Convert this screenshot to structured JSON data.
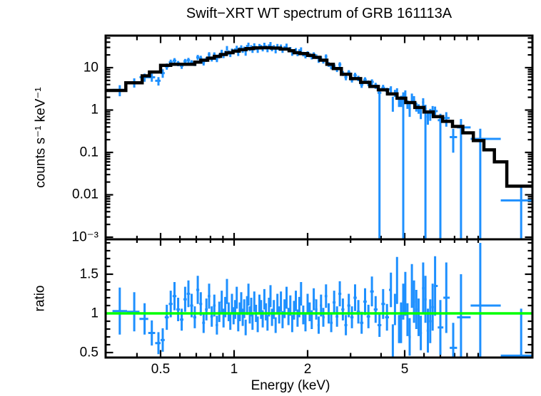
{
  "colors": {
    "background": "#FFFFFF",
    "frame": "#000000",
    "data": "#1E90FF",
    "model": "#000000",
    "reference_line": "#00FF00"
  },
  "chart_data": {
    "type": "scatter",
    "title": "Swift−XRT WT spectrum of GRB 161113A",
    "xlabel": "Energy (keV)",
    "xscale": "log",
    "xlim": [
      0.3,
      16.6
    ],
    "x_major_ticks": [
      0.5,
      1,
      2,
      5
    ],
    "x_tick_labels": [
      "0.5",
      "1",
      "2",
      "5"
    ],
    "x_minor_ticks": [
      0.4,
      0.6,
      0.7,
      0.8,
      0.9,
      3,
      4,
      6,
      7,
      8,
      9,
      10
    ],
    "legend": "none",
    "grid": false,
    "panels": [
      {
        "name": "spectrum",
        "ylabel": "counts s⁻¹ keV⁻¹",
        "yscale": "log",
        "ylim": [
          0.00089,
          57
        ],
        "y_major_ticks": [
          10,
          1,
          0.1,
          0.01,
          0.001
        ],
        "y_tick_labels": [
          "10",
          "1",
          "0.1",
          "0.01",
          "10⁻³"
        ],
        "model_color": "#000000",
        "model_steps": [
          [
            0.3,
            0.36,
            2.9
          ],
          [
            0.36,
            0.42,
            4.4
          ],
          [
            0.42,
            0.45,
            6.4
          ],
          [
            0.45,
            0.5,
            7.9
          ],
          [
            0.5,
            0.55,
            11.3
          ],
          [
            0.55,
            0.69,
            12.0
          ],
          [
            0.69,
            0.73,
            13.5
          ],
          [
            0.73,
            0.78,
            15.0
          ],
          [
            0.78,
            0.83,
            16.8
          ],
          [
            0.83,
            0.88,
            18.5
          ],
          [
            0.88,
            0.93,
            20.5
          ],
          [
            0.93,
            0.99,
            22.5
          ],
          [
            0.99,
            1.05,
            24.5
          ],
          [
            1.05,
            1.12,
            26.5
          ],
          [
            1.12,
            1.2,
            28.2
          ],
          [
            1.2,
            1.3,
            29.3
          ],
          [
            1.3,
            1.42,
            29.6
          ],
          [
            1.42,
            1.55,
            29.0
          ],
          [
            1.55,
            1.68,
            27.5
          ],
          [
            1.68,
            1.76,
            25.0
          ],
          [
            1.76,
            1.86,
            22.5
          ],
          [
            1.86,
            2.0,
            21.5
          ],
          [
            2.0,
            2.12,
            19.5
          ],
          [
            2.12,
            2.25,
            17.5
          ],
          [
            2.25,
            2.4,
            15.0
          ],
          [
            2.4,
            2.55,
            12.0
          ],
          [
            2.55,
            2.75,
            9.5
          ],
          [
            2.75,
            3.0,
            7.0
          ],
          [
            3.0,
            3.3,
            5.5
          ],
          [
            3.3,
            3.6,
            4.5
          ],
          [
            3.6,
            3.9,
            3.6
          ],
          [
            3.9,
            4.25,
            3.0
          ],
          [
            4.25,
            4.65,
            2.4
          ],
          [
            4.65,
            5.05,
            1.9
          ],
          [
            5.05,
            5.5,
            1.5
          ],
          [
            5.5,
            6.0,
            1.15
          ],
          [
            6.0,
            6.55,
            0.9
          ],
          [
            6.55,
            7.15,
            0.7
          ],
          [
            7.15,
            7.85,
            0.54
          ],
          [
            7.85,
            8.65,
            0.41
          ],
          [
            8.65,
            9.55,
            0.29
          ],
          [
            9.55,
            10.55,
            0.19
          ],
          [
            10.55,
            11.65,
            0.115
          ],
          [
            11.65,
            13.1,
            0.06
          ],
          [
            13.1,
            17.2,
            0.016
          ]
        ]
      },
      {
        "name": "ratio",
        "ylabel": "ratio",
        "yscale": "linear",
        "ylim": [
          0.435,
          1.95
        ],
        "y_major_ticks": [
          0.5,
          1,
          1.5
        ],
        "y_tick_labels": [
          "0.5",
          "1",
          "1.5"
        ],
        "reference_line": {
          "y": 1,
          "color": "#00FF00"
        }
      }
    ],
    "counts_rule": "spectrum counts = model_value(energy) × ratio; ratio panel shows data/model",
    "points": {
      "energy": [
        0.34,
        0.39,
        0.43,
        0.46,
        0.49,
        0.51,
        0.53,
        0.55,
        0.57,
        0.59,
        0.61,
        0.63,
        0.65,
        0.67,
        0.69,
        0.71,
        0.73,
        0.75,
        0.77,
        0.79,
        0.81,
        0.83,
        0.85,
        0.87,
        0.89,
        0.905,
        0.92,
        0.935,
        0.95,
        0.965,
        0.98,
        0.995,
        1.01,
        1.025,
        1.04,
        1.055,
        1.07,
        1.085,
        1.1,
        1.115,
        1.13,
        1.145,
        1.16,
        1.175,
        1.19,
        1.21,
        1.23,
        1.25,
        1.27,
        1.29,
        1.31,
        1.33,
        1.35,
        1.37,
        1.39,
        1.41,
        1.43,
        1.455,
        1.48,
        1.505,
        1.53,
        1.555,
        1.58,
        1.61,
        1.64,
        1.67,
        1.7,
        1.73,
        1.76,
        1.79,
        1.82,
        1.85,
        1.88,
        1.92,
        1.96,
        2.0,
        2.04,
        2.08,
        2.12,
        2.17,
        2.22,
        2.27,
        2.32,
        2.38,
        2.44,
        2.5,
        2.57,
        2.64,
        2.71,
        2.79,
        2.87,
        2.95,
        3.04,
        3.13,
        3.23,
        3.33,
        3.44,
        3.55,
        3.67,
        3.8,
        3.94,
        4.08,
        4.23,
        4.39,
        4.47,
        4.56,
        4.65,
        4.74,
        4.83,
        4.93,
        5.03,
        5.13,
        5.24,
        5.35,
        5.46,
        5.58,
        5.7,
        5.82,
        5.95,
        6.08,
        6.22,
        6.36,
        6.51,
        6.66,
        7.0,
        7.4,
        7.9,
        8.5,
        10.2,
        15.0
      ],
      "ratio": [
        1.03,
        1.02,
        0.93,
        0.75,
        0.62,
        0.66,
        0.95,
        1.12,
        1.22,
        1.05,
        0.92,
        1.18,
        1.25,
        1.1,
        0.95,
        1.3,
        1.12,
        0.88,
        1.05,
        1.22,
        0.96,
        1.1,
        0.85,
        1.02,
        1.15,
        0.94,
        1.08,
        1.28,
        1.02,
        0.9,
        1.12,
        0.97,
        1.05,
        1.2,
        0.88,
        1.02,
        1.14,
        0.95,
        1.06,
        0.82,
        1.1,
        1.24,
        0.98,
        1.08,
        0.9,
        1.15,
        1.0,
        0.86,
        1.12,
        1.05,
        0.93,
        1.18,
        1.02,
        0.88,
        1.08,
        1.22,
        0.95,
        1.05,
        0.85,
        1.12,
        0.98,
        1.15,
        0.92,
        1.06,
        1.2,
        0.96,
        1.1,
        0.87,
        1.04,
        1.16,
        0.94,
        1.08,
        1.25,
        0.98,
        0.88,
        1.12,
        1.02,
        0.92,
        1.18,
        1.05,
        0.85,
        1.1,
        0.95,
        1.22,
        1.0,
        0.88,
        1.14,
        0.96,
        1.25,
        1.05,
        0.85,
        1.1,
        0.95,
        1.2,
        1.02,
        0.88,
        1.15,
        0.96,
        1.28,
        1.05,
        0.85,
        1.12,
        0.95,
        1.3,
        0.62,
        1.05,
        1.42,
        0.8,
        0.88,
        1.15,
        1.25,
        0.92,
        0.7,
        1.35,
        1.15,
        1.05,
        0.95,
        0.75,
        1.32,
        1.18,
        0.78,
        0.9,
        1.08,
        1.35,
        0.82,
        1.2,
        0.56,
        0.95,
        1.1,
        0.46
      ],
      "ratio_err": [
        0.3,
        0.25,
        0.2,
        0.16,
        0.14,
        0.15,
        0.16,
        0.17,
        0.18,
        0.15,
        0.14,
        0.16,
        0.17,
        0.15,
        0.14,
        0.18,
        0.15,
        0.13,
        0.14,
        0.16,
        0.13,
        0.14,
        0.12,
        0.13,
        0.14,
        0.12,
        0.13,
        0.16,
        0.12,
        0.11,
        0.13,
        0.11,
        0.12,
        0.14,
        0.11,
        0.12,
        0.13,
        0.11,
        0.12,
        0.1,
        0.12,
        0.14,
        0.11,
        0.12,
        0.11,
        0.13,
        0.11,
        0.1,
        0.12,
        0.12,
        0.11,
        0.13,
        0.11,
        0.1,
        0.12,
        0.14,
        0.11,
        0.12,
        0.1,
        0.13,
        0.11,
        0.13,
        0.11,
        0.12,
        0.14,
        0.11,
        0.13,
        0.11,
        0.12,
        0.13,
        0.11,
        0.13,
        0.15,
        0.12,
        0.11,
        0.13,
        0.12,
        0.12,
        0.14,
        0.13,
        0.11,
        0.14,
        0.12,
        0.15,
        0.13,
        0.12,
        0.15,
        0.13,
        0.16,
        0.14,
        0.13,
        0.15,
        0.14,
        0.17,
        0.15,
        0.14,
        0.17,
        0.15,
        0.19,
        0.17,
        0.15,
        0.19,
        0.17,
        0.22,
        0.24,
        0.2,
        0.3,
        0.18,
        0.26,
        0.23,
        0.28,
        0.21,
        0.24,
        0.28,
        0.27,
        0.25,
        0.24,
        0.22,
        0.33,
        0.3,
        0.28,
        0.28,
        0.3,
        0.38,
        0.35,
        0.45,
        0.32,
        0.55,
        0.8,
        0.6
      ],
      "deep_lower_energies": [
        3.94,
        4.93,
        6.08,
        7.0,
        8.5,
        10.2,
        15.0
      ]
    }
  }
}
